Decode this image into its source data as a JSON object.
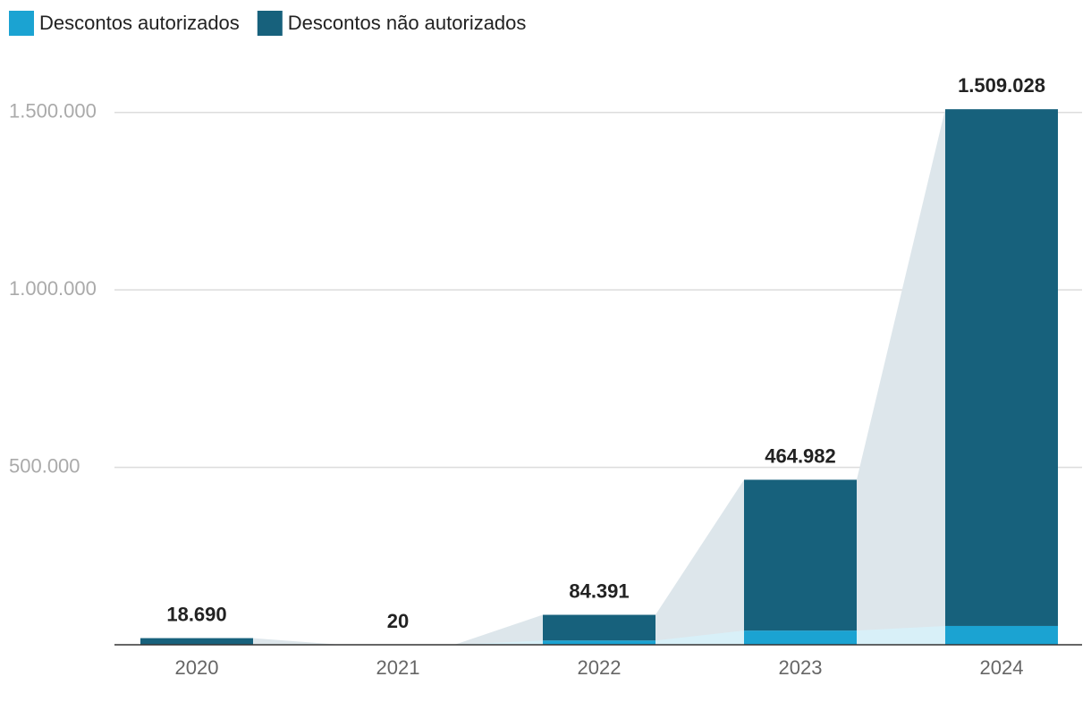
{
  "chart_data": {
    "type": "stacked-bar",
    "categories": [
      "2020",
      "2021",
      "2022",
      "2023",
      "2024"
    ],
    "series": [
      {
        "name": "Descontos autorizados",
        "color": "#1ba3d2",
        "values": [
          0,
          0,
          12000,
          40000,
          53000
        ]
      },
      {
        "name": "Descontos não autorizados",
        "color": "#17617c",
        "values": [
          18690,
          20,
          72391,
          424982,
          1456028
        ]
      }
    ],
    "totals": {
      "values": [
        18690,
        20,
        84391,
        464982,
        1509028
      ],
      "value_labels": [
        "18.690",
        "20",
        "84.391",
        "464.982",
        "1.509.028"
      ]
    },
    "ylim": [
      0,
      1590000
    ],
    "yticks": [
      {
        "value": 500000,
        "label": "500.000"
      },
      {
        "value": 1000000,
        "label": "1.000.000"
      },
      {
        "value": 1500000,
        "label": "1.500.000"
      }
    ],
    "grid": true
  }
}
